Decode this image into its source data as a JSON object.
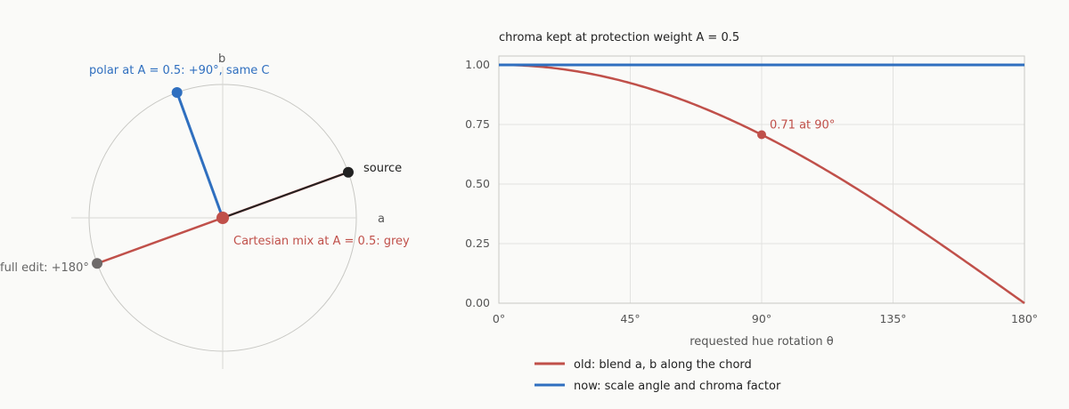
{
  "colors": {
    "old": "#c0504a",
    "now": "#2f6fbf",
    "source": "#222222",
    "full": "#6e6a6a",
    "grid": "#e2e2e0",
    "axis": "#c8c8c4",
    "text": "#555555"
  },
  "left": {
    "axis_a": "a",
    "axis_b": "b",
    "source_label": "source",
    "polar_label": "polar at A = 0.5: +90°, same C",
    "cartesian_label": "Cartesian mix at A = 0.5: grey",
    "full_label": "full edit: +180°",
    "source_angle_deg": 20
  },
  "chart_data": {
    "type": "line",
    "title": "chroma kept at protection weight A = 0.5",
    "xlabel": "requested hue rotation θ",
    "ylabel": "",
    "xlim": [
      0,
      180
    ],
    "ylim": [
      0,
      1
    ],
    "x_ticks": [
      "0°",
      "45°",
      "90°",
      "135°",
      "180°"
    ],
    "y_ticks": [
      "0.00",
      "0.25",
      "0.50",
      "0.75",
      "1.00"
    ],
    "x_tick_values": [
      0,
      45,
      90,
      135,
      180
    ],
    "y_tick_values": [
      0,
      0.25,
      0.5,
      0.75,
      1
    ],
    "grid": true,
    "legend_position": "bottom-left",
    "series": [
      {
        "name": "old: blend a, b along the chord",
        "function": "cos(θ/2)",
        "color_key": "old"
      },
      {
        "name": "now: scale angle and chroma factor",
        "function": "1",
        "color_key": "now"
      }
    ],
    "annotation": {
      "text": "0.71 at 90°",
      "x": 90,
      "y": 0.707
    }
  }
}
